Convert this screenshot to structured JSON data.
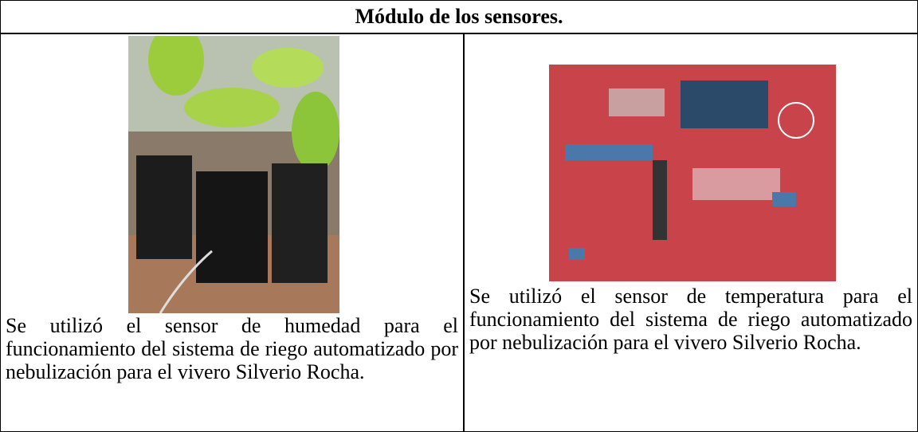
{
  "table": {
    "title": "Módulo de los sensores.",
    "cells": [
      {
        "caption": "Se utilizó el sensor de humedad para el funcionamiento del sistema de riego automatizado por nebulización para el vivero Silverio Rocha."
      },
      {
        "caption": "Se utilizó el sensor de temperatura para el funcionamiento del sistema de riego automatizado por nebulización para el vivero Silverio Rocha."
      }
    ]
  }
}
